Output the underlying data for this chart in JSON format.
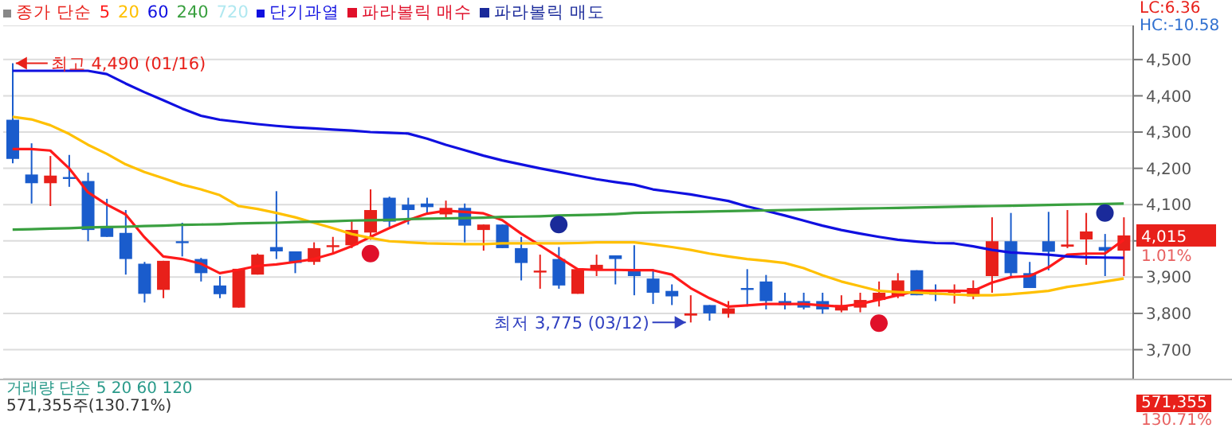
{
  "chart_data": {
    "type": "candlestick",
    "legend_title": "종가 단순",
    "legend": "top left",
    "grid": "y",
    "tick_labels": "y",
    "categories": [
      null,
      null,
      null,
      null,
      null,
      null,
      null,
      null,
      null,
      null,
      null,
      null,
      null,
      null,
      null,
      null,
      null,
      null,
      null,
      null,
      null,
      null,
      null,
      null,
      null,
      null,
      null,
      null,
      null,
      null,
      null,
      null,
      null,
      null,
      null,
      null,
      null,
      null,
      null,
      null,
      null,
      null,
      null,
      null,
      null,
      null,
      null,
      null,
      null,
      null,
      null,
      null,
      null,
      null,
      null,
      null,
      null,
      null,
      null,
      null
    ],
    "ohlc": [
      [
        4334,
        4490,
        4214,
        4226
      ],
      [
        4183,
        4269,
        4103,
        4159
      ],
      [
        4159,
        4234,
        4096,
        4180
      ],
      [
        4176,
        4237,
        4149,
        4175
      ],
      [
        4165,
        4188,
        3999,
        4030
      ],
      [
        4039,
        4116,
        4011,
        4011
      ],
      [
        4022,
        4085,
        3907,
        3950
      ],
      [
        3937,
        3942,
        3830,
        3854
      ],
      [
        3865,
        3945,
        3842,
        3945
      ],
      [
        3999,
        4050,
        3957,
        3998
      ],
      [
        3950,
        3953,
        3888,
        3911
      ],
      [
        3877,
        3903,
        3842,
        3853
      ],
      [
        3816,
        3923,
        3816,
        3923
      ],
      [
        3907,
        3965,
        3907,
        3962
      ],
      [
        3983,
        4137,
        3950,
        3971
      ],
      [
        3971,
        3971,
        3911,
        3939
      ],
      [
        3942,
        3996,
        3934,
        3980
      ],
      [
        3984,
        4011,
        3965,
        3988
      ],
      [
        3988,
        4057,
        3980,
        4030
      ],
      [
        4023,
        4142,
        4003,
        4085
      ],
      [
        4119,
        4122,
        4039,
        4053
      ],
      [
        4100,
        4119,
        4045,
        4085
      ],
      [
        4103,
        4119,
        4073,
        4093
      ],
      [
        4073,
        4111,
        4065,
        4091
      ],
      [
        4091,
        4103,
        3996,
        4042
      ],
      [
        4030,
        4045,
        3973,
        4045
      ],
      [
        4045,
        4045,
        3980,
        3980
      ],
      [
        3980,
        4011,
        3891,
        3939
      ],
      [
        3913,
        3962,
        3868,
        3918
      ],
      [
        3950,
        3983,
        3868,
        3877
      ],
      [
        3854,
        3922,
        3854,
        3922
      ],
      [
        3919,
        3962,
        3903,
        3934
      ],
      [
        3960,
        3960,
        3880,
        3950
      ],
      [
        3922,
        3988,
        3850,
        3903
      ],
      [
        3896,
        3922,
        3826,
        3857
      ],
      [
        3862,
        3880,
        3823,
        3847
      ],
      [
        3794,
        3850,
        3775,
        3800
      ],
      [
        3823,
        3823,
        3780,
        3800
      ],
      [
        3799,
        3834,
        3788,
        3814
      ],
      [
        3870,
        3922,
        3819,
        3867
      ],
      [
        3888,
        3906,
        3811,
        3834
      ],
      [
        3834,
        3857,
        3811,
        3823
      ],
      [
        3834,
        3857,
        3811,
        3816
      ],
      [
        3834,
        3857,
        3799,
        3811
      ],
      [
        3808,
        3850,
        3803,
        3823
      ],
      [
        3816,
        3857,
        3803,
        3837
      ],
      [
        3837,
        3888,
        3819,
        3857
      ],
      [
        3847,
        3911,
        3842,
        3891
      ],
      [
        3919,
        3919,
        3850,
        3850
      ],
      [
        3857,
        3880,
        3834,
        3854
      ],
      [
        3860,
        3880,
        3827,
        3862
      ],
      [
        3847,
        3891,
        3839,
        3870
      ],
      [
        3903,
        4065,
        3857,
        3999
      ],
      [
        3999,
        4077,
        3900,
        3911
      ],
      [
        3911,
        3942,
        3870,
        3870
      ],
      [
        3999,
        4080,
        3919,
        3970
      ],
      [
        3984,
        4085,
        3980,
        3990
      ],
      [
        4004,
        4077,
        3934,
        4026
      ],
      [
        3983,
        4019,
        3903,
        3973
      ],
      [
        3973,
        4065,
        3903,
        4015
      ]
    ],
    "colors": [
      "#1a5ccc",
      "#1a5ccc",
      "#e8201a",
      "#1a5ccc",
      "#1a5ccc",
      "#1a5ccc",
      "#1a5ccc",
      "#1a5ccc",
      "#e8201a",
      "#1a5ccc",
      "#1a5ccc",
      "#1a5ccc",
      "#e8201a",
      "#e8201a",
      "#1a5ccc",
      "#1a5ccc",
      "#e8201a",
      "#e8201a",
      "#e8201a",
      "#e8201a",
      "#1a5ccc",
      "#1a5ccc",
      "#1a5ccc",
      "#e8201a",
      "#1a5ccc",
      "#e8201a",
      "#1a5ccc",
      "#1a5ccc",
      "#e8201a",
      "#1a5ccc",
      "#e8201a",
      "#e8201a",
      "#1a5ccc",
      "#1a5ccc",
      "#1a5ccc",
      "#1a5ccc",
      "#e8201a",
      "#1a5ccc",
      "#e8201a",
      "#1a5ccc",
      "#1a5ccc",
      "#1a5ccc",
      "#1a5ccc",
      "#1a5ccc",
      "#e8201a",
      "#e8201a",
      "#e8201a",
      "#e8201a",
      "#1a5ccc",
      "#1a5ccc",
      "#e8201a",
      "#e8201a",
      "#e8201a",
      "#1a5ccc",
      "#1a5ccc",
      "#1a5ccc",
      "#e8201a",
      "#e8201a",
      "#1a5ccc",
      "#e8201a"
    ],
    "series": [
      {
        "name": "5",
        "type": "line",
        "color": "#ff1a1a",
        "values": [
          4253,
          4253,
          4249,
          4200,
          4134,
          4100,
          4073,
          4010,
          3957,
          3950,
          3937,
          3911,
          3920,
          3931,
          3935,
          3942,
          3950,
          3965,
          3985,
          4011,
          4035,
          4057,
          4075,
          4083,
          4080,
          4076,
          4057,
          4020,
          3988,
          3955,
          3922,
          3920,
          3920,
          3919,
          3919,
          3907,
          3870,
          3842,
          3819,
          3822,
          3826,
          3826,
          3826,
          3822,
          3819,
          3826,
          3838,
          3850,
          3862,
          3862,
          3862,
          3862,
          3885,
          3900,
          3903,
          3927,
          3962,
          3965,
          3965,
          4003
        ]
      },
      {
        "name": "20",
        "type": "line",
        "color": "#ffc000",
        "values": [
          4342,
          4335,
          4319,
          4295,
          4265,
          4240,
          4211,
          4190,
          4173,
          4155,
          4142,
          4126,
          4096,
          4088,
          4077,
          4065,
          4050,
          4035,
          4019,
          4008,
          3999,
          3996,
          3993,
          3992,
          3991,
          3991,
          3993,
          3993,
          3993,
          3993,
          3994,
          3996,
          3996,
          3996,
          3990,
          3983,
          3975,
          3965,
          3957,
          3950,
          3945,
          3939,
          3925,
          3905,
          3888,
          3875,
          3862,
          3859,
          3857,
          3855,
          3852,
          3850,
          3850,
          3853,
          3857,
          3862,
          3873,
          3880,
          3888,
          3896
        ]
      },
      {
        "name": "60",
        "type": "line",
        "color": "#1010e0",
        "values": [
          4469,
          4469,
          4469,
          4469,
          4469,
          4460,
          4434,
          4410,
          4388,
          4365,
          4345,
          4334,
          4328,
          4322,
          4317,
          4313,
          4310,
          4307,
          4304,
          4300,
          4298,
          4296,
          4282,
          4265,
          4250,
          4235,
          4222,
          4211,
          4200,
          4190,
          4180,
          4170,
          4162,
          4155,
          4142,
          4135,
          4128,
          4119,
          4110,
          4095,
          4083,
          4070,
          4056,
          4042,
          4030,
          4020,
          4011,
          4003,
          3998,
          3994,
          3993,
          3985,
          3975,
          3968,
          3965,
          3962,
          3957,
          3955,
          3954,
          3953
        ]
      },
      {
        "name": "240",
        "type": "line",
        "color": "#3aa040",
        "values": [
          4031,
          4032,
          4034,
          4035,
          4037,
          4038,
          4039,
          4041,
          4042,
          4044,
          4045,
          4046,
          4048,
          4049,
          4050,
          4052,
          4053,
          4054,
          4056,
          4057,
          4058,
          4060,
          4061,
          4062,
          4063,
          4064,
          4066,
          4067,
          4068,
          4070,
          4071,
          4072,
          4074,
          4077,
          4078,
          4079,
          4080,
          4081,
          4082,
          4083,
          4084,
          4085,
          4086,
          4087,
          4088,
          4089,
          4090,
          4091,
          4092,
          4093,
          4094,
          4095,
          4096,
          4097,
          4098,
          4099,
          4100,
          4101,
          4102,
          4103
        ]
      },
      {
        "name": "파라볼릭 매수",
        "type": "scatter",
        "marker": "circle",
        "color": "#e0102a",
        "values": [
          null,
          null,
          null,
          null,
          null,
          null,
          null,
          null,
          null,
          null,
          null,
          null,
          null,
          null,
          null,
          null,
          null,
          null,
          null,
          3965,
          null,
          null,
          null,
          null,
          null,
          null,
          null,
          null,
          null,
          null,
          null,
          null,
          null,
          null,
          null,
          null,
          null,
          null,
          null,
          null,
          null,
          null,
          null,
          null,
          null,
          null,
          3773,
          null,
          null,
          null,
          null,
          null,
          null,
          null,
          null,
          null,
          null,
          null,
          null,
          null
        ]
      },
      {
        "name": "파라볼릭 매도",
        "type": "scatter",
        "marker": "circle",
        "color": "#1a2a9a",
        "values": [
          null,
          null,
          null,
          null,
          null,
          null,
          null,
          null,
          null,
          null,
          null,
          null,
          null,
          null,
          null,
          null,
          null,
          null,
          null,
          null,
          null,
          null,
          null,
          null,
          null,
          null,
          null,
          null,
          null,
          4045,
          null,
          null,
          null,
          null,
          null,
          null,
          null,
          null,
          null,
          null,
          null,
          null,
          null,
          null,
          null,
          null,
          null,
          null,
          null,
          null,
          null,
          null,
          null,
          null,
          null,
          null,
          null,
          null,
          4077,
          null
        ]
      }
    ],
    "ylim": [
      3620,
      4594
    ],
    "yticks": [
      {
        "value": 3700,
        "label": "3,700"
      },
      {
        "value": 3800,
        "label": "3,800"
      },
      {
        "value": 3900,
        "label": "3,900"
      },
      {
        "value": 4000,
        "label": null
      },
      {
        "value": 4100,
        "label": "4,100"
      },
      {
        "value": 4200,
        "label": "4,200"
      },
      {
        "value": 4300,
        "label": "4,300"
      },
      {
        "value": 4400,
        "label": "4,400"
      },
      {
        "value": 4500,
        "label": "4,500"
      }
    ],
    "annotations": [
      "720",
      "단기과열",
      "LC:6.36",
      "HC:-10.58",
      "4,015",
      "1.01%",
      "거래량 단순 5 20 60 120",
      "571,355주(130.71%)",
      "571,355",
      "130.71%",
      "최고 4,490 (01/16)",
      "최저 3,775 (03/12)"
    ]
  }
}
